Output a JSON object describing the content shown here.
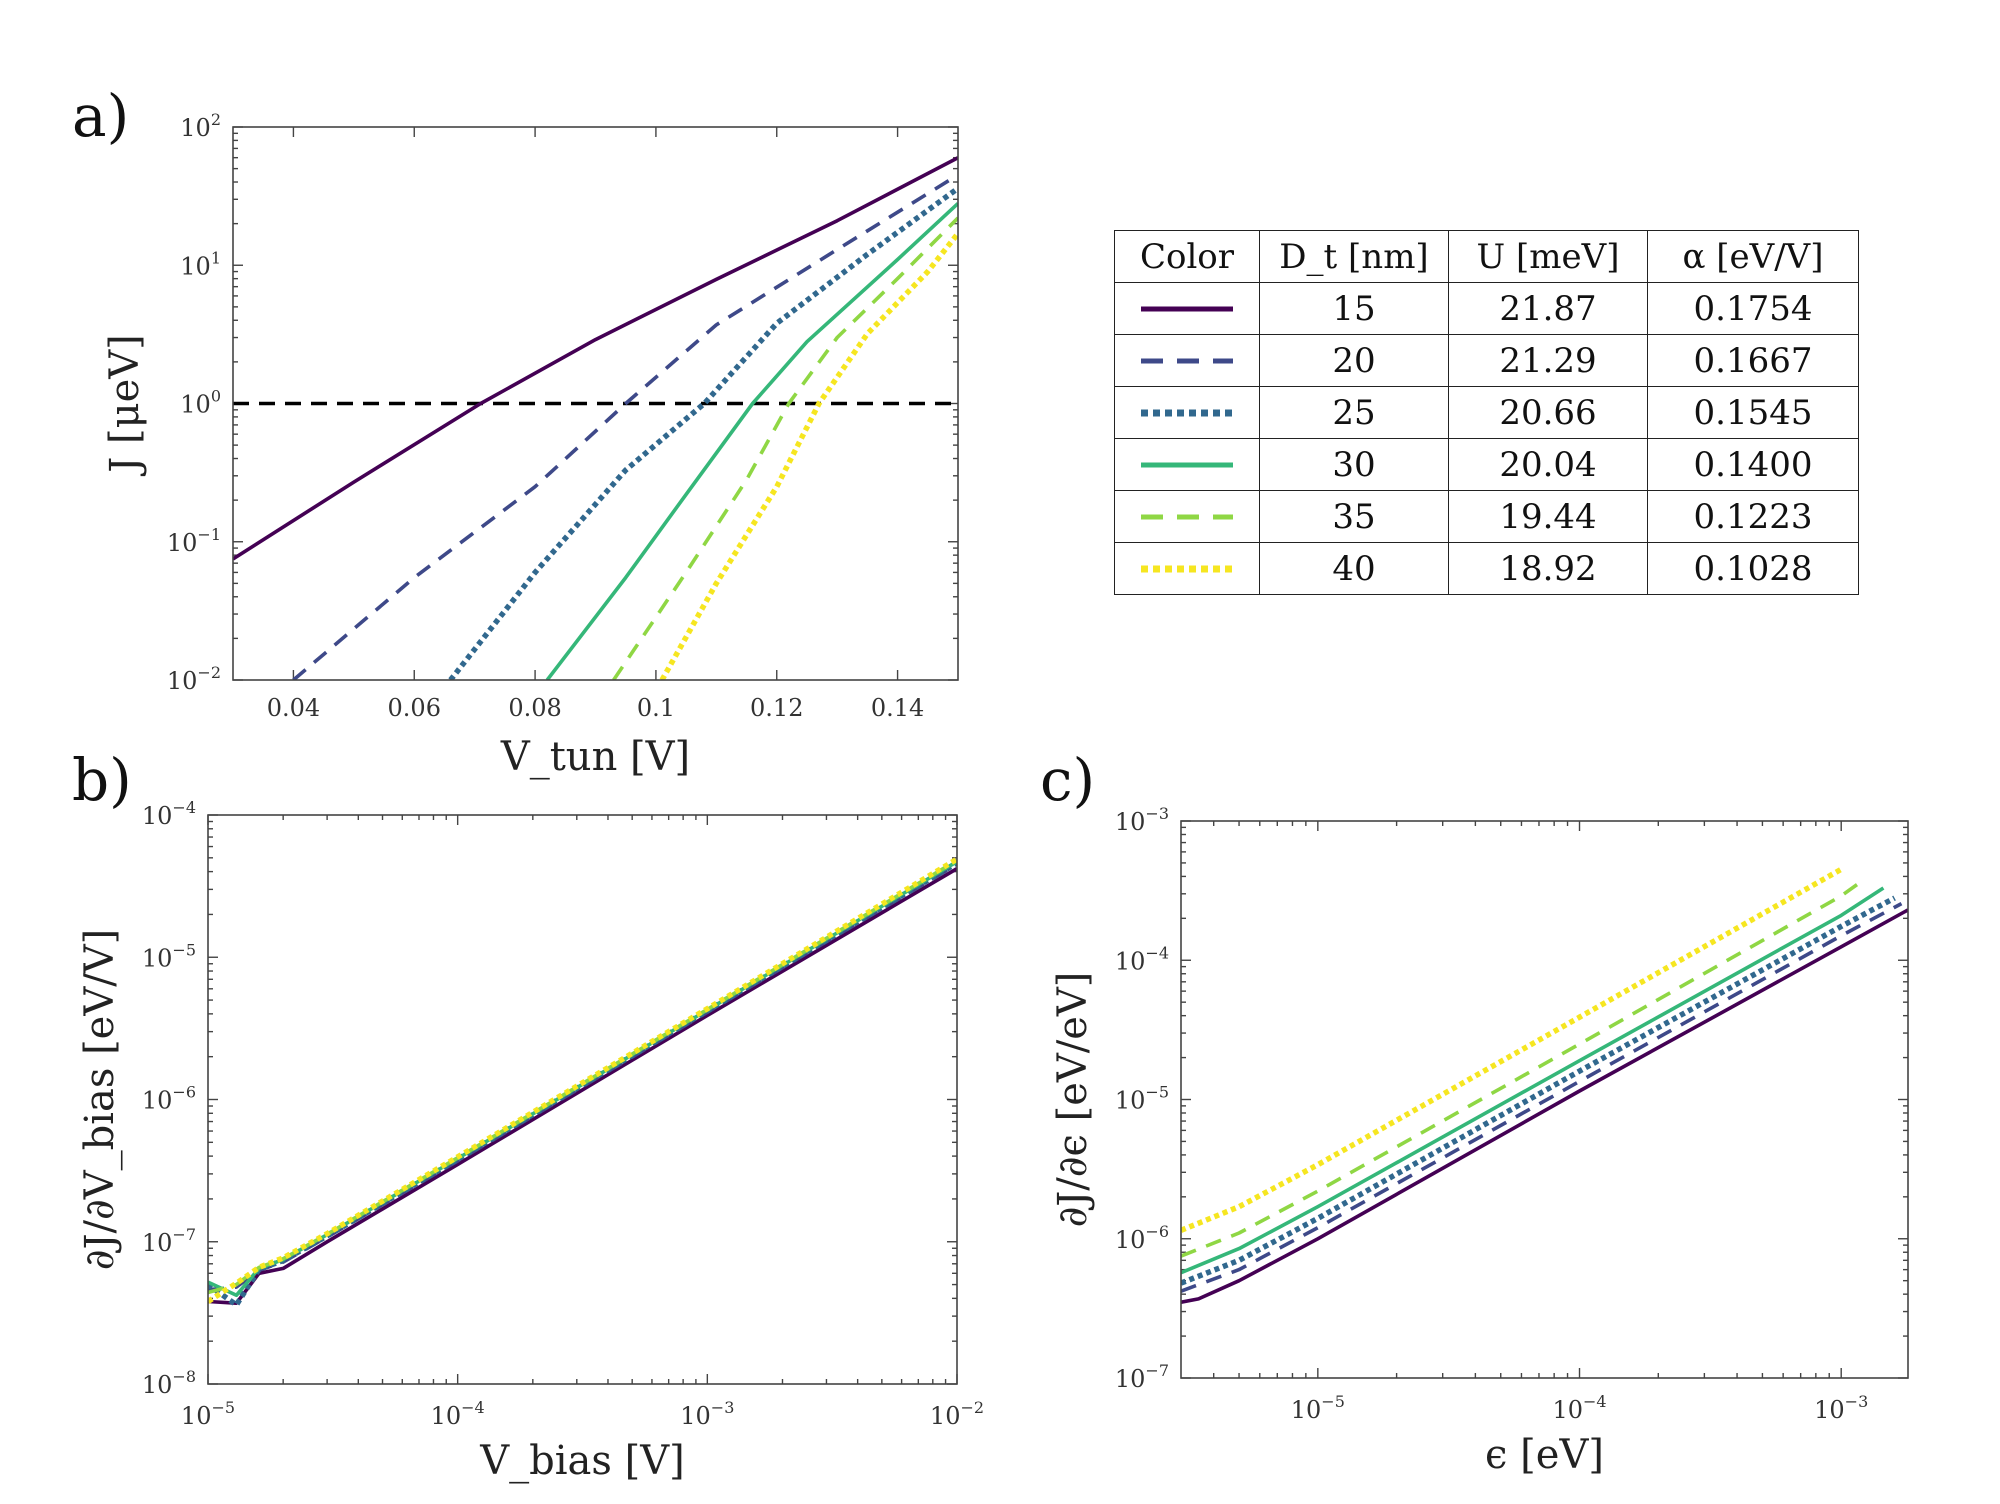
{
  "colors": {
    "D15": "#440154",
    "D20": "#3e4989",
    "D25": "#31688e",
    "D30": "#35b779",
    "D35": "#8fd744",
    "D40": "#f6e620",
    "threshold": "#000000"
  },
  "panels": {
    "a": {
      "label": "a)"
    },
    "b": {
      "label": "b)"
    },
    "c": {
      "label": "c)"
    }
  },
  "table": {
    "headers": [
      "Color",
      "D_t [nm]",
      "U [meV]",
      "α [eV/V]"
    ],
    "rows": [
      {
        "style": "solid",
        "color": "#440154",
        "D_t": "15",
        "U": "21.87",
        "alpha": "0.1754"
      },
      {
        "style": "dashed",
        "color": "#3e4989",
        "D_t": "20",
        "U": "21.29",
        "alpha": "0.1667"
      },
      {
        "style": "dotted",
        "color": "#31688e",
        "D_t": "25",
        "U": "20.66",
        "alpha": "0.1545"
      },
      {
        "style": "solid",
        "color": "#35b779",
        "D_t": "30",
        "U": "20.04",
        "alpha": "0.1400"
      },
      {
        "style": "dashed",
        "color": "#8fd744",
        "D_t": "35",
        "U": "19.44",
        "alpha": "0.1223"
      },
      {
        "style": "dotted",
        "color": "#f6e620",
        "D_t": "40",
        "U": "18.92",
        "alpha": "0.1028"
      }
    ]
  },
  "chart_data": [
    {
      "type": "line",
      "panel": "a)",
      "xlabel": "V_tun [V]",
      "ylabel": "J [μeV]",
      "xlim": [
        0.03,
        0.15
      ],
      "ylim": [
        0.01,
        100
      ],
      "xscale": "linear",
      "yscale": "log",
      "xticks": [
        "0.04",
        "0.06",
        "0.08",
        "0.1",
        "0.12",
        "0.14"
      ],
      "yticks_exponents": [
        -2,
        -1,
        0,
        1,
        2
      ],
      "hline": {
        "y": 1,
        "style": "dashed",
        "color": "#000000"
      },
      "series": [
        {
          "D_t": 15,
          "style": "solid",
          "color": "#440154",
          "x": [
            0.03,
            0.05,
            0.071,
            0.09,
            0.11,
            0.13,
            0.15
          ],
          "y": [
            0.075,
            0.27,
            1.0,
            2.9,
            7.9,
            21,
            60
          ]
        },
        {
          "D_t": 20,
          "style": "dashed",
          "color": "#3e4989",
          "x": [
            0.04,
            0.06,
            0.08,
            0.095,
            0.11,
            0.13,
            0.15
          ],
          "y": [
            0.01,
            0.055,
            0.25,
            1.0,
            3.7,
            13,
            45
          ]
        },
        {
          "D_t": 25,
          "style": "dotted",
          "color": "#31688e",
          "x": [
            0.066,
            0.08,
            0.095,
            0.108,
            0.12,
            0.135,
            0.15
          ],
          "y": [
            0.01,
            0.06,
            0.33,
            1.0,
            3.8,
            12,
            36
          ]
        },
        {
          "D_t": 30,
          "style": "solid",
          "color": "#35b779",
          "x": [
            0.082,
            0.095,
            0.105,
            0.116,
            0.125,
            0.14,
            0.15
          ],
          "y": [
            0.01,
            0.055,
            0.22,
            1.0,
            2.8,
            11,
            28
          ]
        },
        {
          "D_t": 35,
          "style": "dashed",
          "color": "#8fd744",
          "x": [
            0.093,
            0.105,
            0.115,
            0.122,
            0.13,
            0.14,
            0.15
          ],
          "y": [
            0.01,
            0.06,
            0.28,
            1.0,
            3.0,
            8,
            22
          ]
        },
        {
          "D_t": 40,
          "style": "dotted",
          "color": "#f6e620",
          "x": [
            0.101,
            0.11,
            0.12,
            0.127,
            0.135,
            0.145,
            0.15
          ],
          "y": [
            0.01,
            0.05,
            0.25,
            1.0,
            3.2,
            9,
            17
          ]
        }
      ]
    },
    {
      "type": "line",
      "panel": "b)",
      "xlabel": "V_bias [V]",
      "ylabel": "∂J/∂V_bias [eV/V]",
      "xlim": [
        1e-05,
        0.01
      ],
      "ylim": [
        1e-08,
        0.0001
      ],
      "xscale": "log",
      "yscale": "log",
      "xticks_exponents": [
        -5,
        -4,
        -3,
        -2
      ],
      "yticks_exponents": [
        -8,
        -7,
        -6,
        -5,
        -4
      ],
      "series": [
        {
          "D_t": 15,
          "style": "solid",
          "color": "#440154",
          "x": [
            1e-05,
            1.3e-05,
            1.6e-05,
            2e-05,
            3e-05,
            0.0001,
            0.001,
            0.01
          ],
          "y": [
            3.8e-08,
            3.7e-08,
            6e-08,
            6.5e-08,
            1e-07,
            3.5e-07,
            3.9e-06,
            4.2e-05
          ]
        },
        {
          "D_t": 20,
          "style": "dashed",
          "color": "#3e4989",
          "x": [
            1e-05,
            1.3e-05,
            1.6e-05,
            2e-05,
            3e-05,
            0.0001,
            0.001,
            0.01
          ],
          "y": [
            4.6e-08,
            4.8e-08,
            6.3e-08,
            7.2e-08,
            1.08e-07,
            3.7e-07,
            4.1e-06,
            4.5e-05
          ]
        },
        {
          "D_t": 25,
          "style": "dotted",
          "color": "#31688e",
          "x": [
            1e-05,
            1.3e-05,
            1.6e-05,
            2e-05,
            3e-05,
            0.0001,
            0.001,
            0.01
          ],
          "y": [
            5e-08,
            3.6e-08,
            6.4e-08,
            7.4e-08,
            1.1e-07,
            3.8e-07,
            4.2e-06,
            4.6e-05
          ]
        },
        {
          "D_t": 30,
          "style": "solid",
          "color": "#35b779",
          "x": [
            1e-05,
            1.3e-05,
            1.6e-05,
            2e-05,
            3e-05,
            0.0001,
            0.001,
            0.01
          ],
          "y": [
            5.2e-08,
            4.2e-08,
            6.5e-08,
            7.5e-08,
            1.12e-07,
            3.85e-07,
            4.25e-06,
            4.7e-05
          ]
        },
        {
          "D_t": 35,
          "style": "dashed",
          "color": "#8fd744",
          "x": [
            1e-05,
            1.3e-05,
            1.6e-05,
            2e-05,
            3e-05,
            0.0001,
            0.001,
            0.01
          ],
          "y": [
            4.4e-08,
            5e-08,
            6.6e-08,
            7.6e-08,
            1.13e-07,
            3.9e-07,
            4.3e-06,
            4.8e-05
          ]
        },
        {
          "D_t": 40,
          "style": "dotted",
          "color": "#f6e620",
          "x": [
            1e-05,
            1.3e-05,
            1.6e-05,
            2e-05,
            3e-05,
            0.0001,
            0.001,
            0.01
          ],
          "y": [
            3.8e-08,
            5.1e-08,
            6.6e-08,
            7.7e-08,
            1.14e-07,
            3.95e-07,
            4.35e-06,
            4.9e-05
          ]
        }
      ]
    },
    {
      "type": "line",
      "panel": "c)",
      "xlabel": "ϵ [eV]",
      "ylabel": "∂J/∂ϵ [eV/eV]",
      "xlim": [
        3e-06,
        0.0018
      ],
      "ylim": [
        1e-07,
        0.001
      ],
      "xscale": "log",
      "yscale": "log",
      "xticks_exponents": [
        -5,
        -4,
        -3
      ],
      "yticks_exponents": [
        -7,
        -6,
        -5,
        -4,
        -3
      ],
      "series": [
        {
          "D_t": 15,
          "style": "solid",
          "color": "#440154",
          "x": [
            3e-06,
            3.5e-06,
            5e-06,
            1e-05,
            0.0001,
            0.001,
            0.0018
          ],
          "y": [
            3.5e-07,
            3.7e-07,
            5e-07,
            1e-06,
            1.15e-05,
            0.000125,
            0.00023
          ]
        },
        {
          "D_t": 20,
          "style": "dashed",
          "color": "#3e4989",
          "x": [
            3e-06,
            5e-06,
            1e-05,
            0.0001,
            0.001,
            0.0017
          ],
          "y": [
            4.2e-07,
            6e-07,
            1.2e-06,
            1.35e-05,
            0.00015,
            0.000255
          ]
        },
        {
          "D_t": 25,
          "style": "dotted",
          "color": "#31688e",
          "x": [
            3e-06,
            5e-06,
            1e-05,
            0.0001,
            0.001,
            0.0016
          ],
          "y": [
            4.8e-07,
            7e-07,
            1.4e-06,
            1.6e-05,
            0.000175,
            0.00028
          ]
        },
        {
          "D_t": 30,
          "style": "solid",
          "color": "#35b779",
          "x": [
            3e-06,
            5e-06,
            1e-05,
            0.0001,
            0.001,
            0.00145
          ],
          "y": [
            5.7e-07,
            8.5e-07,
            1.7e-06,
            1.9e-05,
            0.00021,
            0.00033
          ]
        },
        {
          "D_t": 35,
          "style": "dashed",
          "color": "#8fd744",
          "x": [
            3e-06,
            5e-06,
            1e-05,
            0.0001,
            0.001,
            0.0012
          ],
          "y": [
            7.5e-07,
            1.1e-06,
            2.2e-06,
            2.5e-05,
            0.00029,
            0.00037
          ]
        },
        {
          "D_t": 40,
          "style": "dotted",
          "color": "#f6e620",
          "x": [
            3e-06,
            5e-06,
            1e-05,
            0.0001,
            0.001
          ],
          "y": [
            1.15e-06,
            1.7e-06,
            3.4e-06,
            3.9e-05,
            0.00045
          ]
        }
      ]
    }
  ]
}
